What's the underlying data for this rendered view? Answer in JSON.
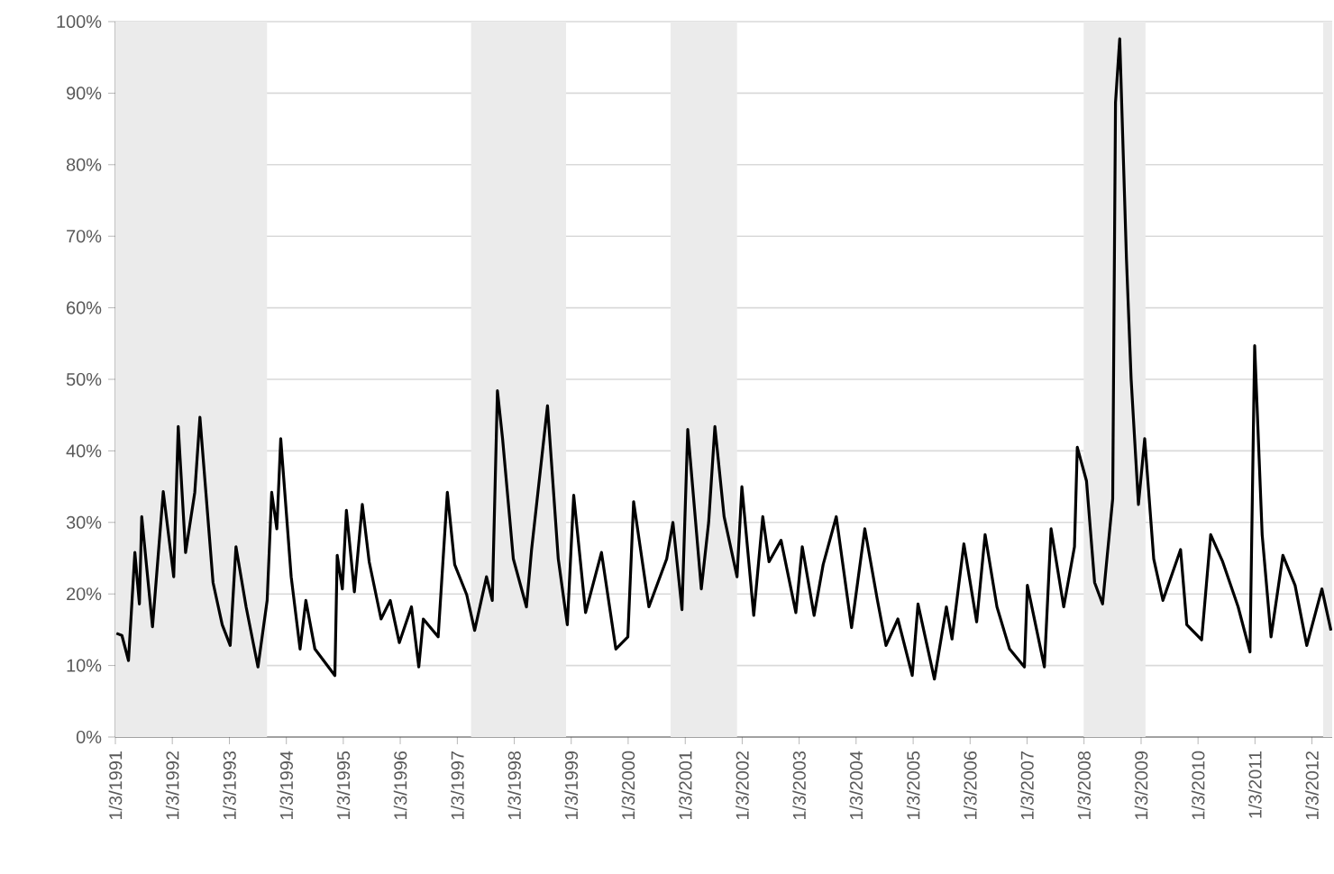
{
  "chart_data": {
    "type": "line",
    "x": [
      "1991-01-10",
      "1991-02-14",
      "1991-03-28",
      "1991-05-08",
      "1991-06-06",
      "1991-06-21",
      "1991-08-29",
      "1991-11-06",
      "1992-01-12",
      "1992-02-10",
      "1992-03-28",
      "1992-05-26",
      "1992-06-28",
      "1992-09-20",
      "1992-11-18",
      "1993-01-08",
      "1993-02-14",
      "1993-04-20",
      "1993-07-05",
      "1993-09-02",
      "1993-10-01",
      "1993-11-03",
      "1993-11-28",
      "1994-02-03",
      "1994-04-01",
      "1994-05-08",
      "1994-07-05",
      "1994-11-10",
      "1994-11-25",
      "1994-12-28",
      "1995-01-23",
      "1995-03-15",
      "1995-05-05",
      "1995-06-18",
      "1995-09-02",
      "1995-10-31",
      "1995-12-28",
      "1996-03-15",
      "1996-05-01",
      "1996-05-30",
      "1996-09-02",
      "1996-10-31",
      "1996-12-17",
      "1997-03-04",
      "1997-04-24",
      "1997-07-09",
      "1997-08-15",
      "1997-09-17",
      "1997-10-20",
      "1997-12-28",
      "1998-03-22",
      "1998-04-24",
      "1998-08-04",
      "1998-10-12",
      "1998-12-09",
      "1999-01-19",
      "1999-04-05",
      "1999-07-16",
      "1999-10-16",
      "2000-01-01",
      "2000-02-07",
      "2000-05-15",
      "2000-09-06",
      "2000-10-16",
      "2000-12-13",
      "2001-01-19",
      "2001-04-16",
      "2001-06-02",
      "2001-07-12",
      "2001-09-09",
      "2001-12-01",
      "2002-01-01",
      "2002-03-18",
      "2002-05-15",
      "2002-06-24",
      "2002-09-09",
      "2002-12-13",
      "2003-01-23",
      "2003-04-09",
      "2003-06-06",
      "2003-08-29",
      "2003-12-05",
      "2004-02-28",
      "2004-05-19",
      "2004-07-13",
      "2004-09-27",
      "2004-12-28",
      "2005-02-03",
      "2005-05-19",
      "2005-08-04",
      "2005-09-09",
      "2005-11-24",
      "2006-02-14",
      "2006-04-09",
      "2006-06-24",
      "2006-09-13",
      "2006-12-17",
      "2007-01-05",
      "2007-04-24",
      "2007-06-06",
      "2007-08-26",
      "2007-11-03",
      "2007-11-21",
      "2008-01-19",
      "2008-03-11",
      "2008-05-01",
      "2008-07-05",
      "2008-07-23",
      "2008-08-19",
      "2008-10-01",
      "2008-10-31",
      "2008-12-17",
      "2009-01-26",
      "2009-03-25",
      "2009-05-23",
      "2009-09-13",
      "2009-10-23",
      "2010-01-26",
      "2010-03-25",
      "2010-06-10",
      "2010-09-17",
      "2010-12-02",
      "2011-01-01",
      "2011-02-18",
      "2011-04-16",
      "2011-07-01",
      "2011-09-17",
      "2011-12-01",
      "2012-03-07",
      "2012-05-04"
    ],
    "series": [
      {
        "color": "#000000",
        "values": [
          14.5,
          14.2,
          10.7,
          25.8,
          18.6,
          30.8,
          15.4,
          34.3,
          22.4,
          43.4,
          25.8,
          34.2,
          44.7,
          21.6,
          15.7,
          12.8,
          26.6,
          18.2,
          9.8,
          19.1,
          34.2,
          29.1,
          41.7,
          22.4,
          12.3,
          19.1,
          12.3,
          8.6,
          25.4,
          20.7,
          31.7,
          20.3,
          32.5,
          24.5,
          16.5,
          19.1,
          13.2,
          18.2,
          9.8,
          16.5,
          14.0,
          34.2,
          24.1,
          19.9,
          14.9,
          22.4,
          19.1,
          48.4,
          41.7,
          24.9,
          18.2,
          26.2,
          46.3,
          24.9,
          15.7,
          33.8,
          17.4,
          25.8,
          12.3,
          14.0,
          32.9,
          18.2,
          24.9,
          30.0,
          17.8,
          43.0,
          20.7,
          30.0,
          43.4,
          30.8,
          22.4,
          35.0,
          17.0,
          30.8,
          24.5,
          27.5,
          17.4,
          26.6,
          17.0,
          24.1,
          30.8,
          15.3,
          29.1,
          19.1,
          12.8,
          16.5,
          8.6,
          18.6,
          8.1,
          18.2,
          13.7,
          27.0,
          16.1,
          28.3,
          18.2,
          12.3,
          9.8,
          21.2,
          9.8,
          29.1,
          18.2,
          26.6,
          40.5,
          35.8,
          21.6,
          18.6,
          33.3,
          88.7,
          97.6,
          66.9,
          50.1,
          32.5,
          41.7,
          24.9,
          19.1,
          26.2,
          15.7,
          13.6,
          28.3,
          24.5,
          18.2,
          11.9,
          54.7,
          28.3,
          14.0,
          25.4,
          21.2,
          12.8,
          20.7,
          14.9
        ]
      }
    ],
    "xlim": [
      "1991-01-03",
      "2012-05-12"
    ],
    "xticks": [
      {
        "value": "1991-01-03",
        "label": "1/3/1991"
      },
      {
        "value": "1992-01-03",
        "label": "1/3/1992"
      },
      {
        "value": "1993-01-03",
        "label": "1/3/1993"
      },
      {
        "value": "1994-01-03",
        "label": "1/3/1994"
      },
      {
        "value": "1995-01-03",
        "label": "1/3/1995"
      },
      {
        "value": "1996-01-03",
        "label": "1/3/1996"
      },
      {
        "value": "1997-01-03",
        "label": "1/3/1997"
      },
      {
        "value": "1998-01-03",
        "label": "1/3/1998"
      },
      {
        "value": "1999-01-03",
        "label": "1/3/1999"
      },
      {
        "value": "2000-01-03",
        "label": "1/3/2000"
      },
      {
        "value": "2001-01-03",
        "label": "1/3/2001"
      },
      {
        "value": "2002-01-03",
        "label": "1/3/2002"
      },
      {
        "value": "2003-01-03",
        "label": "1/3/2003"
      },
      {
        "value": "2004-01-03",
        "label": "1/3/2004"
      },
      {
        "value": "2005-01-03",
        "label": "1/3/2005"
      },
      {
        "value": "2006-01-03",
        "label": "1/3/2006"
      },
      {
        "value": "2007-01-03",
        "label": "1/3/2007"
      },
      {
        "value": "2008-01-03",
        "label": "1/3/2008"
      },
      {
        "value": "2009-01-03",
        "label": "1/3/2009"
      },
      {
        "value": "2010-01-03",
        "label": "1/3/2010"
      },
      {
        "value": "2011-01-03",
        "label": "1/3/2011"
      },
      {
        "value": "2012-01-03",
        "label": "1/3/2012"
      }
    ],
    "ylim": [
      0,
      100
    ],
    "yticks": [
      {
        "value": 0,
        "label": "0%"
      },
      {
        "value": 10,
        "label": "10%"
      },
      {
        "value": 20,
        "label": "20%"
      },
      {
        "value": 30,
        "label": "30%"
      },
      {
        "value": 40,
        "label": "40%"
      },
      {
        "value": 50,
        "label": "50%"
      },
      {
        "value": 60,
        "label": "60%"
      },
      {
        "value": 70,
        "label": "70%"
      },
      {
        "value": 80,
        "label": "80%"
      },
      {
        "value": 90,
        "label": "90%"
      },
      {
        "value": 100,
        "label": "100%"
      }
    ],
    "grid": "y",
    "bands": [
      {
        "axis": "x",
        "from": "1991-01-03",
        "to": "1993-09-01",
        "color": "#ebebeb"
      },
      {
        "axis": "x",
        "from": "1997-04-01",
        "to": "1998-12-01",
        "color": "#ebebeb"
      },
      {
        "axis": "x",
        "from": "2000-10-01",
        "to": "2001-12-01",
        "color": "#ebebeb"
      },
      {
        "axis": "x",
        "from": "2008-01-01",
        "to": "2009-01-31",
        "color": "#ebebeb"
      },
      {
        "axis": "x",
        "from": "2012-03-15",
        "to": "2012-05-12",
        "color": "#ebebeb"
      }
    ]
  }
}
